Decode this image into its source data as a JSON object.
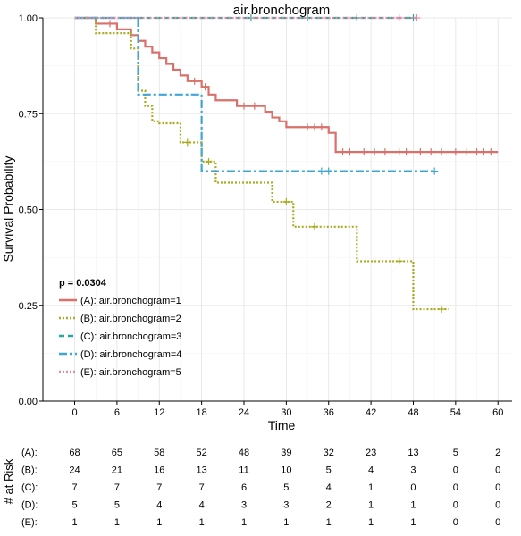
{
  "chart_data": {
    "type": "line",
    "title": "air.bronchogram",
    "xlabel": "Time",
    "ylabel": "Survival Probability",
    "xlim": [
      -4.5,
      62
    ],
    "ylim": [
      0,
      1
    ],
    "xticks": [
      0,
      6,
      12,
      18,
      24,
      30,
      36,
      42,
      48,
      54,
      60
    ],
    "yticks": [
      0.0,
      0.25,
      0.5,
      0.75,
      1.0
    ],
    "ytick_labels": [
      "0.00",
      "0.25",
      "0.50",
      "0.75",
      "1.00"
    ],
    "grid": true,
    "pvalue_label": "p = 0.0304",
    "legend_position": "bottom-left",
    "series": [
      {
        "name": "(A): air.bronchogram=1",
        "color": "#d9706a",
        "dash": "solid",
        "steps": [
          [
            0,
            1.0
          ],
          [
            3,
            0.985
          ],
          [
            6,
            0.97
          ],
          [
            8,
            0.955
          ],
          [
            9,
            0.94
          ],
          [
            10,
            0.925
          ],
          [
            11,
            0.91
          ],
          [
            12,
            0.895
          ],
          [
            13,
            0.88
          ],
          [
            14,
            0.865
          ],
          [
            15,
            0.85
          ],
          [
            16,
            0.835
          ],
          [
            18,
            0.82
          ],
          [
            19,
            0.8
          ],
          [
            20,
            0.785
          ],
          [
            23,
            0.77
          ],
          [
            27,
            0.755
          ],
          [
            28,
            0.74
          ],
          [
            29,
            0.73
          ],
          [
            30,
            0.715
          ],
          [
            36,
            0.7
          ],
          [
            37,
            0.65
          ],
          [
            60,
            0.65
          ]
        ],
        "censor": [
          [
            5,
            0.985
          ],
          [
            17,
            0.835
          ],
          [
            18.5,
            0.82
          ],
          [
            24,
            0.77
          ],
          [
            25.5,
            0.77
          ],
          [
            33,
            0.715
          ],
          [
            34,
            0.715
          ],
          [
            35,
            0.715
          ],
          [
            38,
            0.65
          ],
          [
            39,
            0.65
          ],
          [
            41,
            0.65
          ],
          [
            42.5,
            0.65
          ],
          [
            44,
            0.65
          ],
          [
            46,
            0.65
          ],
          [
            47,
            0.65
          ],
          [
            49,
            0.65
          ],
          [
            50.5,
            0.65
          ],
          [
            52,
            0.65
          ],
          [
            54,
            0.65
          ],
          [
            55.5,
            0.65
          ],
          [
            57,
            0.65
          ],
          [
            58,
            0.65
          ],
          [
            59,
            0.65
          ]
        ]
      },
      {
        "name": "(B): air.bronchogram=2",
        "color": "#a8aa1f",
        "dash": "dotted",
        "steps": [
          [
            0,
            1.0
          ],
          [
            3,
            0.96
          ],
          [
            8,
            0.92
          ],
          [
            9,
            0.81
          ],
          [
            10,
            0.77
          ],
          [
            11,
            0.73
          ],
          [
            12,
            0.725
          ],
          [
            15,
            0.675
          ],
          [
            18,
            0.625
          ],
          [
            20,
            0.57
          ],
          [
            28,
            0.52
          ],
          [
            31,
            0.455
          ],
          [
            40,
            0.365
          ],
          [
            48,
            0.24
          ],
          [
            53,
            0.24
          ]
        ],
        "censor": [
          [
            16,
            0.675
          ],
          [
            19,
            0.625
          ],
          [
            30,
            0.52
          ],
          [
            34,
            0.455
          ],
          [
            46,
            0.365
          ],
          [
            52,
            0.24
          ]
        ]
      },
      {
        "name": "(C): air.bronchogram=3",
        "color": "#23a99a",
        "dash": "dashed",
        "steps": [
          [
            0,
            1.0
          ],
          [
            48.5,
            1.0
          ]
        ],
        "censor": [
          [
            25,
            1.0
          ],
          [
            33,
            1.0
          ],
          [
            40,
            1.0
          ],
          [
            48,
            1.0
          ]
        ]
      },
      {
        "name": "(D): air.bronchogram=4",
        "color": "#3ea6d6",
        "dash": "longdash",
        "steps": [
          [
            0,
            1.0
          ],
          [
            9,
            0.8
          ],
          [
            18,
            0.6
          ],
          [
            51,
            0.6
          ]
        ],
        "censor": [
          [
            35,
            0.6
          ],
          [
            36,
            0.6
          ],
          [
            51,
            0.6
          ]
        ]
      },
      {
        "name": "(E): air.bronchogram=5",
        "color": "#e58ba8",
        "dash": "dotted",
        "steps": [
          [
            0,
            1.0
          ],
          [
            48.5,
            1.0
          ]
        ],
        "censor": [
          [
            46,
            1.0
          ],
          [
            48.5,
            1.0
          ]
        ]
      }
    ],
    "risk_table": {
      "title": "# at Risk",
      "rows": [
        {
          "label": "(A):",
          "values": [
            "68",
            "65",
            "58",
            "52",
            "48",
            "39",
            "32",
            "23",
            "13",
            "5",
            "2"
          ]
        },
        {
          "label": "(B):",
          "values": [
            "24",
            "21",
            "16",
            "13",
            "11",
            "10",
            "5",
            "4",
            "3",
            "0",
            "0"
          ]
        },
        {
          "label": "(C):",
          "values": [
            "7",
            "7",
            "7",
            "7",
            "6",
            "5",
            "4",
            "1",
            "0",
            "0",
            "0"
          ]
        },
        {
          "label": "(D):",
          "values": [
            "5",
            "5",
            "4",
            "4",
            "3",
            "3",
            "2",
            "1",
            "1",
            "0",
            "0"
          ]
        },
        {
          "label": "(E):",
          "values": [
            "1",
            "1",
            "1",
            "1",
            "1",
            "1",
            "1",
            "1",
            "1",
            "0",
            "0"
          ]
        }
      ]
    }
  }
}
